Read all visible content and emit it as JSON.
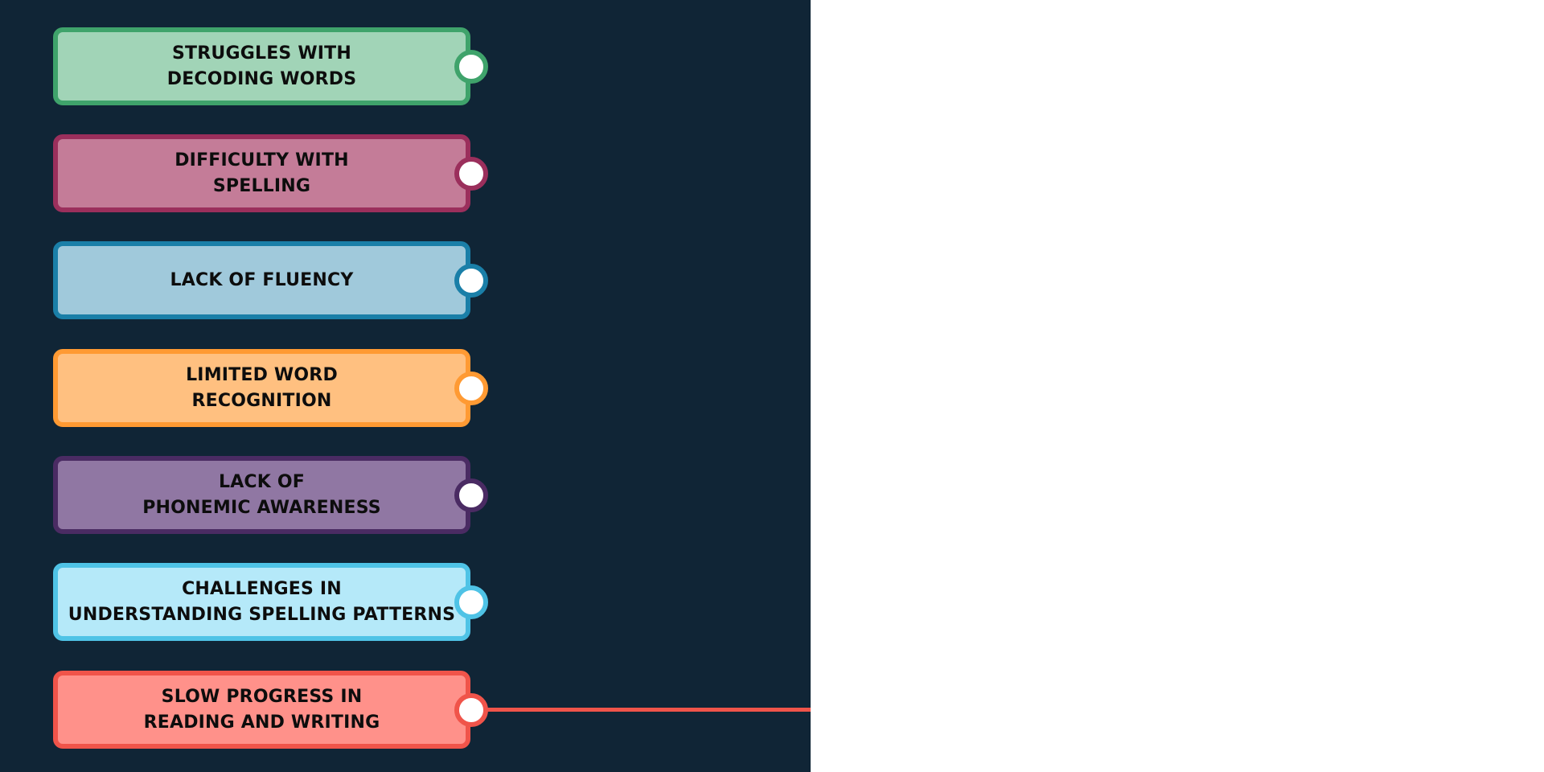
{
  "diagram": {
    "panel_color": "#102536",
    "items": [
      {
        "label": "STRUGGLES WITH\nDECODING WORDS",
        "fill": "#a1d4b7",
        "border": "#3fa36b"
      },
      {
        "label": "DIFFICULTY WITH\nSPELLING",
        "fill": "#c47c98",
        "border": "#9b2f5c"
      },
      {
        "label": "LACK OF FLUENCY",
        "fill": "#a0c9db",
        "border": "#1a7fa8"
      },
      {
        "label": "LIMITED WORD\nRECOGNITION",
        "fill": "#ffc080",
        "border": "#ff9a33"
      },
      {
        "label": "LACK OF\nPHONEMIC AWARENESS",
        "fill": "#9077a3",
        "border": "#4a2b63"
      },
      {
        "label": "CHALLENGES IN\nUNDERSTANDING SPELLING PATTERNS",
        "fill": "#b5e9f9",
        "border": "#4fc3e6"
      },
      {
        "label": "SLOW PROGRESS IN\nREADING AND WRITING",
        "fill": "#ff918a",
        "border": "#f0544a",
        "has_line": true
      }
    ]
  }
}
